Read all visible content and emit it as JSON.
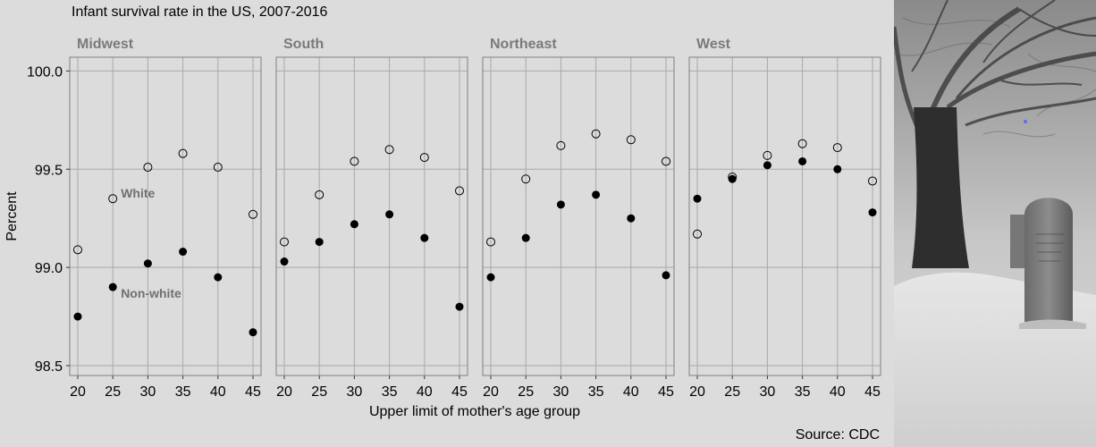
{
  "chart_data": {
    "type": "scatter",
    "title": "Infant survival rate in the US, 2007-2016",
    "xlabel": "Upper limit of mother's age group",
    "ylabel": "Percent",
    "caption": "Source: CDC",
    "ylim": [
      98.45,
      100.07
    ],
    "yticks": [
      "98.5",
      "99.0",
      "99.5",
      "100.0"
    ],
    "xticks": [
      "20",
      "25",
      "30",
      "35",
      "40",
      "45"
    ],
    "grid": true,
    "series_labels": {
      "white": "White",
      "nonwhite": "Non-white"
    },
    "panels": [
      {
        "name": "Midwest",
        "white": [
          99.09,
          99.35,
          99.51,
          99.58,
          99.51,
          99.27
        ],
        "nonwhite": [
          98.75,
          98.9,
          99.02,
          99.08,
          98.95,
          98.67
        ]
      },
      {
        "name": "South",
        "white": [
          99.13,
          99.37,
          99.54,
          99.6,
          99.56,
          99.39
        ],
        "nonwhite": [
          99.03,
          99.13,
          99.22,
          99.27,
          99.15,
          98.8
        ]
      },
      {
        "name": "Northeast",
        "white": [
          99.13,
          99.45,
          99.62,
          99.68,
          99.65,
          99.54
        ],
        "nonwhite": [
          98.95,
          99.15,
          99.32,
          99.37,
          99.25,
          98.96
        ]
      },
      {
        "name": "West",
        "white": [
          99.17,
          99.46,
          99.57,
          99.63,
          99.61,
          99.44
        ],
        "nonwhite": [
          99.35,
          99.45,
          99.52,
          99.54,
          99.5,
          99.28
        ]
      }
    ]
  },
  "colors": {
    "background": "#dcdcdc",
    "grid": "#a9a9a9",
    "panel_border": "#7f7f7f",
    "strip_text": "#7a7a7a",
    "point": "#000000",
    "label": "#707070"
  },
  "photo": {
    "description_icon": "winter-cemetery-photo"
  }
}
